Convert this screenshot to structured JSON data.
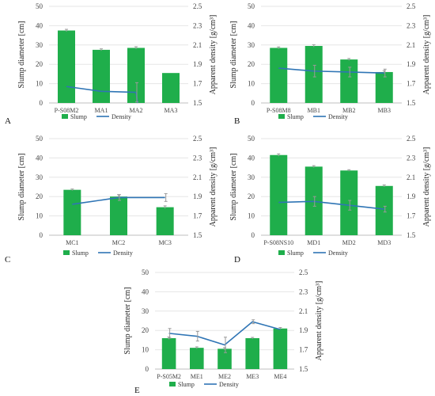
{
  "colors": {
    "bar": "#1fae4b",
    "line": "#2f75b5",
    "grid": "#e6e6e6",
    "error": "#9a9a9a",
    "axis": "#bfbfbf"
  },
  "legend": {
    "slump": "Slump",
    "density": "Density"
  },
  "chart_data": [
    {
      "panel": "A",
      "type": "bar",
      "categories": [
        "P-S08M2",
        "MA1",
        "MA2",
        "MA3"
      ],
      "series": [
        {
          "name": "Slump",
          "type": "bar",
          "axis": "left",
          "values": [
            37.5,
            27.5,
            28.5,
            15.5
          ],
          "errors": [
            0.6,
            0.5,
            0.6,
            0
          ]
        },
        {
          "name": "Density",
          "type": "line",
          "axis": "right",
          "values": [
            1.67,
            1.62,
            1.61,
            null
          ],
          "errors": [
            0,
            0,
            0.1,
            0
          ]
        }
      ],
      "ylabel": "Slump diameter [cm]",
      "ylim": [
        0,
        50
      ],
      "yticks": [
        "0",
        "10",
        "20",
        "30",
        "40",
        "50"
      ],
      "y2label": "Apparent density [g/cm³]",
      "y2lim": [
        1.5,
        2.5
      ],
      "y2ticks": [
        "1.5",
        "1.7",
        "1.9",
        "2.1",
        "2.3",
        "2.5"
      ],
      "legend_position": "bottom",
      "grid": true
    },
    {
      "panel": "B",
      "type": "bar",
      "categories": [
        "P-S08M8",
        "MB1",
        "MB2",
        "MB3"
      ],
      "series": [
        {
          "name": "Slump",
          "type": "bar",
          "axis": "left",
          "values": [
            28.5,
            29.5,
            22.5,
            16
          ],
          "errors": [
            0.5,
            0.6,
            0.5,
            0.7
          ]
        },
        {
          "name": "Density",
          "type": "line",
          "axis": "right",
          "values": [
            1.86,
            1.83,
            1.82,
            1.81
          ],
          "errors": [
            0,
            0.06,
            0.05,
            0.04
          ]
        }
      ],
      "ylabel": "Slump diameter [cm]",
      "ylim": [
        0,
        50
      ],
      "yticks": [
        "0",
        "10",
        "20",
        "30",
        "40",
        "50"
      ],
      "y2label": "Apparent density [g/cm³]",
      "y2lim": [
        1.5,
        2.5
      ],
      "y2ticks": [
        "1.5",
        "1.7",
        "1.9",
        "2.1",
        "2.3",
        "2.5"
      ],
      "legend_position": "bottom",
      "grid": true
    },
    {
      "panel": "C",
      "type": "bar",
      "categories": [
        "MC1",
        "MC2",
        "MC3"
      ],
      "series": [
        {
          "name": "Slump",
          "type": "bar",
          "axis": "left",
          "values": [
            23.5,
            20,
            14.5
          ],
          "errors": [
            0.4,
            1.0,
            0.7
          ]
        },
        {
          "name": "Density",
          "type": "line",
          "axis": "right",
          "values": [
            1.82,
            1.89,
            1.89
          ],
          "errors": [
            0,
            0.03,
            0.04
          ]
        }
      ],
      "ylabel": "Slump diameter [cm]",
      "ylim": [
        0,
        50
      ],
      "yticks": [
        "0",
        "10",
        "20",
        "30",
        "40",
        "50"
      ],
      "y2label": "Apparent density [g/cm³]",
      "y2lim": [
        1.5,
        2.5
      ],
      "y2ticks": [
        "1.5",
        "1.7",
        "1.9",
        "2.1",
        "2.3",
        "2.5"
      ],
      "legend_position": "bottom",
      "grid": true
    },
    {
      "panel": "D",
      "type": "bar",
      "categories": [
        "P-S08NS10",
        "MD1",
        "MD2",
        "MD3"
      ],
      "series": [
        {
          "name": "Slump",
          "type": "bar",
          "axis": "left",
          "values": [
            41.5,
            35.5,
            33.5,
            25.5
          ],
          "errors": [
            0.6,
            0.5,
            0.4,
            0.5
          ]
        },
        {
          "name": "Density",
          "type": "line",
          "axis": "right",
          "values": [
            1.84,
            1.85,
            1.81,
            1.77
          ],
          "errors": [
            0,
            0.05,
            0.05,
            0.03
          ]
        }
      ],
      "ylabel": "Slump diameter [cm]",
      "ylim": [
        0,
        50
      ],
      "yticks": [
        "0",
        "10",
        "20",
        "30",
        "40",
        "50"
      ],
      "y2label": "Apparent density [g/cm³]",
      "y2lim": [
        1.5,
        2.5
      ],
      "y2ticks": [
        "1.5",
        "1.7",
        "1.9",
        "2.1",
        "2.3",
        "2.5"
      ],
      "legend_position": "bottom",
      "grid": true
    },
    {
      "panel": "E",
      "type": "bar",
      "categories": [
        "P-S05M2",
        "ME1",
        "ME2",
        "ME3",
        "ME4"
      ],
      "series": [
        {
          "name": "Slump",
          "type": "bar",
          "axis": "left",
          "values": [
            16,
            11,
            10.5,
            16,
            21
          ],
          "errors": [
            0.6,
            0.5,
            0.6,
            0.4,
            0.5
          ]
        },
        {
          "name": "Density",
          "type": "line",
          "axis": "right",
          "values": [
            1.87,
            1.84,
            1.75,
            1.99,
            1.91
          ],
          "errors": [
            0.05,
            0.05,
            0.08,
            0.02,
            0
          ]
        }
      ],
      "ylabel": "Slump diameter [cm]",
      "ylim": [
        0,
        50
      ],
      "yticks": [
        "0",
        "10",
        "20",
        "30",
        "40",
        "50"
      ],
      "y2label": "Apparent density [g/cm³]",
      "y2lim": [
        1.5,
        2.5
      ],
      "y2ticks": [
        "1.5",
        "1.7",
        "1.9",
        "2.1",
        "2.3",
        "2.5"
      ],
      "legend_position": "bottom",
      "grid": true
    }
  ]
}
